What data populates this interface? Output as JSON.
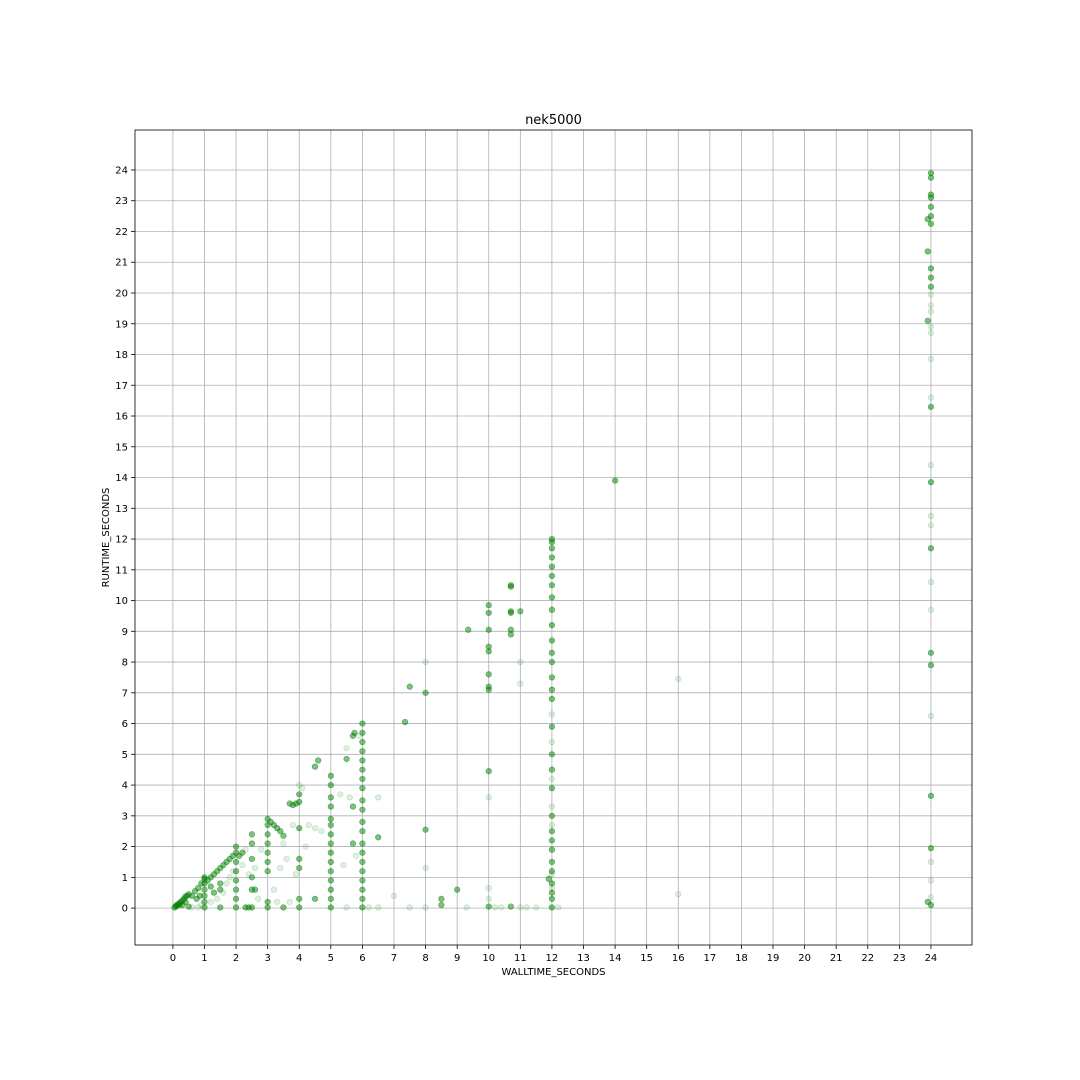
{
  "chart_data": {
    "type": "scatter",
    "title": "nek5000",
    "xlabel": "WALLTIME_SECONDS",
    "ylabel": "RUNTIME_SECONDS",
    "xlim": [
      -1.2,
      25.3
    ],
    "ylim": [
      -1.2,
      25.3
    ],
    "xticks": [
      0,
      1,
      2,
      3,
      4,
      5,
      6,
      7,
      8,
      9,
      10,
      11,
      12,
      13,
      14,
      15,
      16,
      17,
      18,
      19,
      20,
      21,
      22,
      23,
      24
    ],
    "yticks": [
      0,
      1,
      2,
      3,
      4,
      5,
      6,
      7,
      8,
      9,
      10,
      11,
      12,
      13,
      14,
      15,
      16,
      17,
      18,
      19,
      20,
      21,
      22,
      23,
      24
    ],
    "grid": true,
    "color": "#008000",
    "series": [
      {
        "opacity": 0.5,
        "points": [
          [
            0.05,
            0.02
          ],
          [
            0.1,
            0.08
          ],
          [
            0.15,
            0.12
          ],
          [
            0.2,
            0.15
          ],
          [
            0.25,
            0.2
          ],
          [
            0.3,
            0.25
          ],
          [
            0.35,
            0.3
          ],
          [
            0.4,
            0.38
          ],
          [
            0.45,
            0.4
          ],
          [
            0.5,
            0.45
          ],
          [
            0.1,
            0.05
          ],
          [
            0.2,
            0.1
          ],
          [
            0.3,
            0.1
          ],
          [
            0.4,
            0.2
          ],
          [
            0.5,
            0.05
          ],
          [
            0.6,
            0.4
          ],
          [
            0.7,
            0.55
          ],
          [
            0.8,
            0.65
          ],
          [
            0.9,
            0.8
          ],
          [
            1.0,
            0.95
          ],
          [
            0.75,
            0.3
          ],
          [
            0.85,
            0.4
          ],
          [
            1.0,
            0.02
          ],
          [
            1.0,
            0.2
          ],
          [
            1.0,
            0.4
          ],
          [
            1.0,
            0.6
          ],
          [
            1.0,
            0.8
          ],
          [
            1.0,
            1.0
          ],
          [
            1.1,
            0.9
          ],
          [
            1.2,
            1.0
          ],
          [
            1.3,
            1.1
          ],
          [
            1.4,
            1.2
          ],
          [
            1.5,
            1.3
          ],
          [
            1.6,
            1.4
          ],
          [
            1.7,
            1.5
          ],
          [
            1.8,
            1.6
          ],
          [
            1.9,
            1.7
          ],
          [
            1.5,
            0.6
          ],
          [
            1.5,
            0.8
          ],
          [
            1.3,
            0.5
          ],
          [
            1.2,
            0.7
          ],
          [
            1.5,
            0.02
          ],
          [
            2.0,
            0.02
          ],
          [
            2.0,
            0.3
          ],
          [
            2.0,
            0.6
          ],
          [
            2.0,
            0.9
          ],
          [
            2.0,
            1.2
          ],
          [
            2.0,
            1.5
          ],
          [
            2.0,
            1.8
          ],
          [
            2.0,
            2.0
          ],
          [
            2.1,
            1.7
          ],
          [
            2.2,
            1.8
          ],
          [
            2.3,
            0.02
          ],
          [
            2.4,
            0.02
          ],
          [
            2.5,
            2.4
          ],
          [
            2.5,
            2.1
          ],
          [
            2.5,
            1.6
          ],
          [
            2.5,
            1.0
          ],
          [
            2.5,
            0.6
          ],
          [
            2.5,
            0.02
          ],
          [
            2.6,
            0.6
          ],
          [
            3.0,
            0.02
          ],
          [
            3.0,
            0.2
          ],
          [
            3.0,
            1.2
          ],
          [
            3.0,
            1.5
          ],
          [
            3.0,
            1.8
          ],
          [
            3.0,
            2.1
          ],
          [
            3.0,
            2.4
          ],
          [
            3.0,
            2.7
          ],
          [
            3.0,
            2.9
          ],
          [
            3.1,
            2.8
          ],
          [
            3.2,
            2.7
          ],
          [
            3.3,
            2.6
          ],
          [
            3.4,
            2.5
          ],
          [
            3.5,
            2.35
          ],
          [
            3.5,
            0.02
          ],
          [
            3.7,
            3.4
          ],
          [
            3.8,
            3.35
          ],
          [
            3.9,
            3.4
          ],
          [
            4.0,
            3.45
          ],
          [
            4.0,
            3.7
          ],
          [
            4.0,
            2.6
          ],
          [
            4.0,
            1.6
          ],
          [
            4.0,
            1.3
          ],
          [
            4.0,
            0.02
          ],
          [
            4.0,
            0.3
          ],
          [
            4.5,
            4.6
          ],
          [
            4.6,
            4.8
          ],
          [
            4.5,
            0.3
          ],
          [
            5.0,
            0.02
          ],
          [
            5.0,
            0.3
          ],
          [
            5.0,
            0.6
          ],
          [
            5.0,
            0.9
          ],
          [
            5.0,
            1.2
          ],
          [
            5.0,
            1.5
          ],
          [
            5.0,
            1.8
          ],
          [
            5.0,
            2.1
          ],
          [
            5.0,
            2.4
          ],
          [
            5.0,
            2.7
          ],
          [
            5.0,
            2.9
          ],
          [
            5.0,
            3.3
          ],
          [
            5.0,
            3.6
          ],
          [
            5.0,
            4.0
          ],
          [
            5.0,
            4.3
          ],
          [
            5.5,
            4.85
          ],
          [
            5.7,
            5.6
          ],
          [
            5.75,
            5.7
          ],
          [
            5.7,
            3.3
          ],
          [
            5.7,
            2.1
          ],
          [
            6.0,
            0.02
          ],
          [
            6.0,
            0.3
          ],
          [
            6.0,
            0.6
          ],
          [
            6.0,
            0.9
          ],
          [
            6.0,
            1.2
          ],
          [
            6.0,
            1.5
          ],
          [
            6.0,
            1.8
          ],
          [
            6.0,
            2.1
          ],
          [
            6.0,
            2.5
          ],
          [
            6.0,
            2.8
          ],
          [
            6.0,
            3.2
          ],
          [
            6.0,
            3.5
          ],
          [
            6.0,
            3.9
          ],
          [
            6.0,
            4.2
          ],
          [
            6.0,
            4.5
          ],
          [
            6.0,
            4.8
          ],
          [
            6.0,
            5.1
          ],
          [
            6.0,
            5.4
          ],
          [
            6.0,
            5.7
          ],
          [
            6.0,
            6.0
          ],
          [
            6.5,
            2.3
          ],
          [
            7.35,
            6.05
          ],
          [
            7.5,
            7.2
          ],
          [
            8.0,
            7.0
          ],
          [
            8.0,
            2.55
          ],
          [
            8.5,
            0.3
          ],
          [
            8.5,
            0.1
          ],
          [
            9.0,
            0.6
          ],
          [
            9.35,
            9.05
          ],
          [
            10.0,
            9.85
          ],
          [
            10.0,
            9.6
          ],
          [
            10.0,
            9.05
          ],
          [
            10.0,
            8.5
          ],
          [
            10.0,
            8.35
          ],
          [
            10.0,
            7.6
          ],
          [
            10.0,
            7.2
          ],
          [
            10.0,
            7.1
          ],
          [
            10.0,
            4.45
          ],
          [
            10.0,
            0.05
          ],
          [
            10.7,
            10.5
          ],
          [
            10.7,
            10.45
          ],
          [
            10.7,
            9.65
          ],
          [
            10.7,
            9.6
          ],
          [
            10.7,
            9.05
          ],
          [
            10.7,
            8.9
          ],
          [
            10.7,
            0.05
          ],
          [
            11.0,
            9.65
          ],
          [
            11.9,
            0.95
          ],
          [
            12.0,
            0.02
          ],
          [
            12.0,
            0.3
          ],
          [
            12.0,
            0.5
          ],
          [
            12.0,
            0.8
          ],
          [
            12.0,
            1.2
          ],
          [
            12.0,
            1.5
          ],
          [
            12.0,
            1.9
          ],
          [
            12.0,
            2.2
          ],
          [
            12.0,
            2.5
          ],
          [
            12.0,
            3.0
          ],
          [
            12.0,
            3.9
          ],
          [
            12.0,
            4.5
          ],
          [
            12.0,
            5.0
          ],
          [
            12.0,
            5.9
          ],
          [
            12.0,
            6.8
          ],
          [
            12.0,
            7.1
          ],
          [
            12.0,
            7.5
          ],
          [
            12.0,
            8.0
          ],
          [
            12.0,
            8.3
          ],
          [
            12.0,
            8.7
          ],
          [
            12.0,
            9.2
          ],
          [
            12.0,
            9.7
          ],
          [
            12.0,
            10.1
          ],
          [
            12.0,
            10.5
          ],
          [
            12.0,
            10.8
          ],
          [
            12.0,
            11.1
          ],
          [
            12.0,
            11.4
          ],
          [
            12.0,
            11.7
          ],
          [
            12.0,
            11.9
          ],
          [
            12.0,
            12.0
          ],
          [
            14.0,
            13.9
          ],
          [
            23.9,
            0.2
          ],
          [
            24.0,
            0.1
          ],
          [
            24.0,
            1.95
          ],
          [
            24.0,
            3.65
          ],
          [
            24.0,
            7.9
          ],
          [
            24.0,
            8.3
          ],
          [
            24.0,
            11.7
          ],
          [
            24.0,
            13.85
          ],
          [
            24.0,
            16.3
          ],
          [
            23.9,
            19.1
          ],
          [
            23.9,
            21.35
          ],
          [
            24.0,
            20.2
          ],
          [
            24.0,
            20.5
          ],
          [
            24.0,
            20.8
          ],
          [
            23.9,
            22.4
          ],
          [
            24.0,
            22.25
          ],
          [
            24.0,
            22.5
          ],
          [
            24.0,
            22.8
          ],
          [
            24.0,
            23.1
          ],
          [
            24.0,
            23.2
          ],
          [
            24.0,
            23.75
          ],
          [
            24.0,
            23.9
          ]
        ]
      },
      {
        "opacity": 0.12,
        "points": [
          [
            0.6,
            0.02
          ],
          [
            0.8,
            0.02
          ],
          [
            0.9,
            0.1
          ],
          [
            1.2,
            0.2
          ],
          [
            1.4,
            0.3
          ],
          [
            1.6,
            0.5
          ],
          [
            1.7,
            0.8
          ],
          [
            1.8,
            1.0
          ],
          [
            1.9,
            1.2
          ],
          [
            2.2,
            1.4
          ],
          [
            2.3,
            1.9
          ],
          [
            2.4,
            1.1
          ],
          [
            2.6,
            1.3
          ],
          [
            2.7,
            0.3
          ],
          [
            2.8,
            1.9
          ],
          [
            3.3,
            0.2
          ],
          [
            3.2,
            0.6
          ],
          [
            3.4,
            1.3
          ],
          [
            3.5,
            2.1
          ],
          [
            3.6,
            1.6
          ],
          [
            3.7,
            0.2
          ],
          [
            3.8,
            2.7
          ],
          [
            3.9,
            1.1
          ],
          [
            4.2,
            2.0
          ],
          [
            4.3,
            2.7
          ],
          [
            4.5,
            2.6
          ],
          [
            4.7,
            2.5
          ],
          [
            4.1,
            3.9
          ],
          [
            4.0,
            4.0
          ],
          [
            5.3,
            3.7
          ],
          [
            5.4,
            1.4
          ],
          [
            5.5,
            5.2
          ],
          [
            5.5,
            0.02
          ],
          [
            5.6,
            3.6
          ],
          [
            5.8,
            1.7
          ],
          [
            5.9,
            5.6
          ],
          [
            6.2,
            0.02
          ],
          [
            6.5,
            3.6
          ],
          [
            6.5,
            0.02
          ],
          [
            7.0,
            0.4
          ],
          [
            7.5,
            0.02
          ],
          [
            8.0,
            8.0
          ],
          [
            8.0,
            1.3
          ],
          [
            8.0,
            0.02
          ],
          [
            9.3,
            0.02
          ],
          [
            10.0,
            3.6
          ],
          [
            10.0,
            0.65
          ],
          [
            10.0,
            0.3
          ],
          [
            10.2,
            0.02
          ],
          [
            10.4,
            0.02
          ],
          [
            11.0,
            8.0
          ],
          [
            11.0,
            7.3
          ],
          [
            11.0,
            0.02
          ],
          [
            11.2,
            0.02
          ],
          [
            11.5,
            0.02
          ],
          [
            12.2,
            0.02
          ],
          [
            12.0,
            6.3
          ],
          [
            12.0,
            5.4
          ],
          [
            12.0,
            4.2
          ],
          [
            12.0,
            3.3
          ],
          [
            12.0,
            2.7
          ],
          [
            12.0,
            1.1
          ],
          [
            12.0,
            0.65
          ],
          [
            16.0,
            7.45
          ],
          [
            16.0,
            0.45
          ],
          [
            24.0,
            0.35
          ],
          [
            24.0,
            0.9
          ],
          [
            24.0,
            1.5
          ],
          [
            24.0,
            6.25
          ],
          [
            24.0,
            9.7
          ],
          [
            24.0,
            10.6
          ],
          [
            24.0,
            12.45
          ],
          [
            24.0,
            12.75
          ],
          [
            24.0,
            14.4
          ],
          [
            24.0,
            16.6
          ],
          [
            24.0,
            17.85
          ],
          [
            24.0,
            18.7
          ],
          [
            24.0,
            18.9
          ],
          [
            24.0,
            19.4
          ],
          [
            24.0,
            19.6
          ],
          [
            24.0,
            19.95
          ]
        ]
      }
    ]
  }
}
